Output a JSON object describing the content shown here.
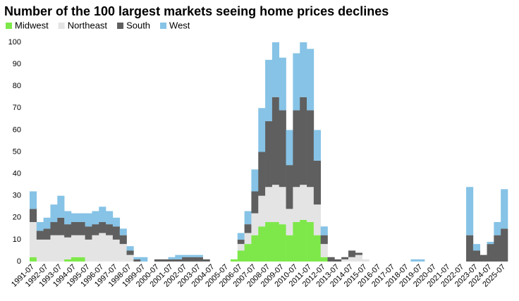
{
  "chart_data": {
    "type": "stacked-bar",
    "title": "Number of the 100 largest markets seeing home prices declines",
    "categories": [
      "1991-07",
      null,
      "1992-07",
      null,
      "1993-07",
      null,
      "1994-07",
      null,
      "1995-07",
      null,
      "1996-07",
      null,
      "1997-07",
      null,
      "1998-07",
      null,
      "1999-07",
      null,
      "2000-07",
      null,
      "2001-07",
      null,
      "2002-07",
      null,
      "2003-07",
      null,
      "2004-07",
      null,
      "2005-07",
      null,
      "2006-07",
      null,
      "2007-07",
      null,
      "2008-07",
      null,
      "2009-07",
      null,
      "2010-07",
      null,
      "2011-07",
      null,
      "2012-07",
      null,
      "2013-07",
      null,
      "2014-07",
      null,
      "2015-07",
      null,
      "2016-07",
      null,
      "2017-07",
      null,
      "2018-07",
      null,
      "2019-07",
      null,
      "2020-07",
      null,
      "2021-07",
      null,
      "2022-07",
      null,
      "2023-07",
      null,
      "2024-07",
      null,
      "2025-07"
    ],
    "series": [
      {
        "name": "Midwest",
        "color": "#7ee84a",
        "values": [
          2,
          0,
          0,
          0,
          0,
          1,
          2,
          2,
          0,
          0,
          0,
          0,
          0,
          0,
          0,
          0,
          0,
          0,
          0,
          0,
          0,
          0,
          0,
          0,
          0,
          0,
          0,
          0,
          0,
          1,
          5,
          8,
          12,
          16,
          18,
          18,
          17,
          12,
          18,
          19,
          18,
          12,
          2,
          0,
          0,
          0,
          0,
          0,
          0,
          0,
          0,
          0,
          0,
          0,
          0,
          0,
          0,
          0,
          0,
          0,
          0,
          0,
          0,
          0,
          0,
          0,
          0,
          0,
          0
        ]
      },
      {
        "name": "Northeast",
        "color": "#e4e4e4",
        "values": [
          16,
          10,
          10,
          12,
          12,
          10,
          10,
          10,
          10,
          12,
          13,
          12,
          10,
          8,
          3,
          0,
          0,
          0,
          0,
          0,
          0,
          0,
          0,
          0,
          0,
          0,
          0,
          0,
          0,
          0,
          3,
          5,
          10,
          14,
          16,
          17,
          17,
          12,
          16,
          16,
          16,
          14,
          6,
          0,
          0,
          1,
          2,
          3,
          1,
          0,
          0,
          0,
          0,
          0,
          0,
          0,
          0,
          0,
          0,
          0,
          0,
          0,
          0,
          0,
          0,
          0,
          0,
          0,
          0
        ]
      },
      {
        "name": "South",
        "color": "#5f5f5f",
        "values": [
          6,
          4,
          5,
          6,
          8,
          6,
          6,
          6,
          6,
          5,
          5,
          5,
          6,
          4,
          2,
          1,
          0,
          0,
          1,
          1,
          1,
          1,
          2,
          2,
          2,
          1,
          0,
          0,
          0,
          0,
          2,
          4,
          10,
          20,
          30,
          40,
          35,
          20,
          35,
          40,
          35,
          20,
          4,
          2,
          1,
          1,
          3,
          1,
          0,
          0,
          0,
          0,
          0,
          0,
          0,
          0,
          0,
          0,
          0,
          0,
          0,
          0,
          0,
          12,
          5,
          3,
          8,
          12,
          15
        ]
      },
      {
        "name": "West",
        "color": "#86c3e6",
        "values": [
          8,
          4,
          5,
          8,
          10,
          6,
          4,
          4,
          6,
          6,
          7,
          6,
          4,
          3,
          2,
          1,
          2,
          0,
          0,
          0,
          1,
          2,
          1,
          1,
          1,
          0,
          0,
          0,
          0,
          0,
          3,
          6,
          10,
          20,
          28,
          25,
          24,
          16,
          26,
          25,
          28,
          14,
          4,
          0,
          0,
          0,
          0,
          0,
          0,
          0,
          0,
          0,
          0,
          0,
          0,
          1,
          1,
          0,
          0,
          0,
          0,
          0,
          0,
          22,
          3,
          0,
          1,
          6,
          18
        ]
      }
    ],
    "ylim": [
      0,
      100
    ],
    "yticks": [
      0,
      10,
      20,
      30,
      40,
      50,
      60,
      70,
      80,
      90,
      100
    ],
    "grid": false,
    "legend": "top-left"
  }
}
